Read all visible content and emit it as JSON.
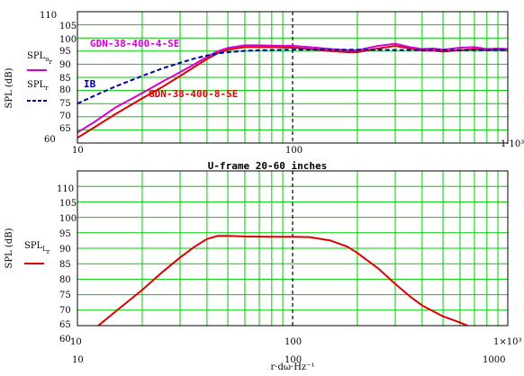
{
  "chart_data": [
    {
      "type": "line",
      "title": "",
      "x_scale": "log",
      "xlim": [
        10,
        1000
      ],
      "ylim": [
        60,
        110
      ],
      "x_tick_labels": [
        "10",
        "100",
        "1·10³"
      ],
      "y_tick_labels": [
        "110",
        "105",
        "100",
        "95",
        "90",
        "85",
        "80",
        "75",
        "70",
        "65",
        "60"
      ],
      "grid": true,
      "ylabel": "SPL (dB)",
      "legend": [
        {
          "base": "SPL",
          "sub": "o",
          "sub2": "r",
          "color": "#d400d4",
          "dash": false
        },
        {
          "base": "SPL",
          "sub": "r",
          "sub2": "",
          "color": "#0000aa",
          "dash": true
        }
      ],
      "annotations": [
        {
          "text": "GDN-38-400-4-SE",
          "color": "#d400d4"
        },
        {
          "text": "IB",
          "color": "#0000aa"
        },
        {
          "text": "GDN-38-400-8-SE",
          "color": "#dd0000"
        }
      ],
      "series": [
        {
          "color": "#dd0000",
          "style": "solid",
          "x": [
            10,
            12,
            15,
            20,
            25,
            30,
            35,
            40,
            45,
            50,
            60,
            70,
            80,
            100,
            120,
            150,
            180,
            200,
            250,
            300,
            350,
            400,
            450,
            500,
            600,
            700,
            800,
            900,
            1000
          ],
          "y": [
            62,
            66,
            71,
            77,
            81.5,
            85.5,
            89,
            92,
            94.2,
            95.5,
            96.5,
            96.5,
            96.5,
            96.3,
            95.8,
            95,
            94.6,
            94.6,
            96,
            97,
            96,
            95.2,
            95.2,
            94.8,
            95.3,
            95.8,
            95.3,
            95.6,
            95.4
          ]
        },
        {
          "color": "#d400d4",
          "style": "solid",
          "x": [
            10,
            12,
            15,
            20,
            25,
            30,
            35,
            40,
            45,
            50,
            60,
            70,
            80,
            100,
            120,
            150,
            180,
            200,
            250,
            300,
            350,
            400,
            450,
            500,
            600,
            700,
            800,
            900,
            1000
          ],
          "y": [
            64,
            68,
            73.5,
            79,
            83.5,
            87,
            90,
            92.8,
            95,
            96.2,
            97.2,
            97.2,
            97.1,
            97,
            96.5,
            95.8,
            95.3,
            95.3,
            97,
            97.8,
            96.5,
            95.8,
            96,
            95.5,
            96.3,
            96.5,
            95.8,
            96,
            95.8
          ]
        },
        {
          "color": "#0000aa",
          "style": "dash",
          "x": [
            10,
            12,
            15,
            20,
            25,
            30,
            35,
            40,
            45,
            50,
            60,
            70,
            80,
            100,
            120,
            150,
            200,
            300,
            500,
            1000
          ],
          "y": [
            75,
            78,
            81.5,
            85.5,
            88.5,
            90.5,
            92.2,
            93.3,
            94.1,
            94.6,
            95.1,
            95.3,
            95.4,
            95.5,
            95.5,
            95.5,
            95.5,
            95.4,
            95.4,
            95.4
          ]
        }
      ]
    },
    {
      "type": "line",
      "title": "U-frame 20-60 inches",
      "x_scale": "log",
      "xlim": [
        10,
        1000
      ],
      "ylim": [
        60,
        110
      ],
      "x_tick_labels": [
        "10",
        "100",
        "1000",
        "1×10³"
      ],
      "x_tick_labels_upper": [
        "10",
        "100"
      ],
      "y_tick_labels": [
        "110",
        "105",
        "100",
        "95",
        "90",
        "85",
        "80",
        "75",
        "70",
        "65",
        "60"
      ],
      "grid": true,
      "ylabel": "SPL (dB)",
      "xlabel": "r·dω·Hz⁻¹",
      "legend": [
        {
          "base": "SPL",
          "sub": "L",
          "sub2": "r",
          "color": "#dd0000",
          "dash": false
        }
      ],
      "series": [
        {
          "color": "#dd0000",
          "style": "solid",
          "x": [
            12.5,
            15,
            20,
            25,
            30,
            35,
            40,
            45,
            50,
            60,
            80,
            100,
            120,
            150,
            180,
            200,
            250,
            300,
            350,
            400,
            500,
            600,
            650
          ],
          "y": [
            60,
            64.5,
            71.5,
            77.5,
            82,
            85.5,
            88,
            89,
            89,
            88.8,
            88.7,
            88.7,
            88.6,
            87.5,
            85.5,
            83.5,
            78.5,
            73.5,
            69.5,
            66.5,
            63,
            61,
            60
          ]
        }
      ]
    }
  ]
}
